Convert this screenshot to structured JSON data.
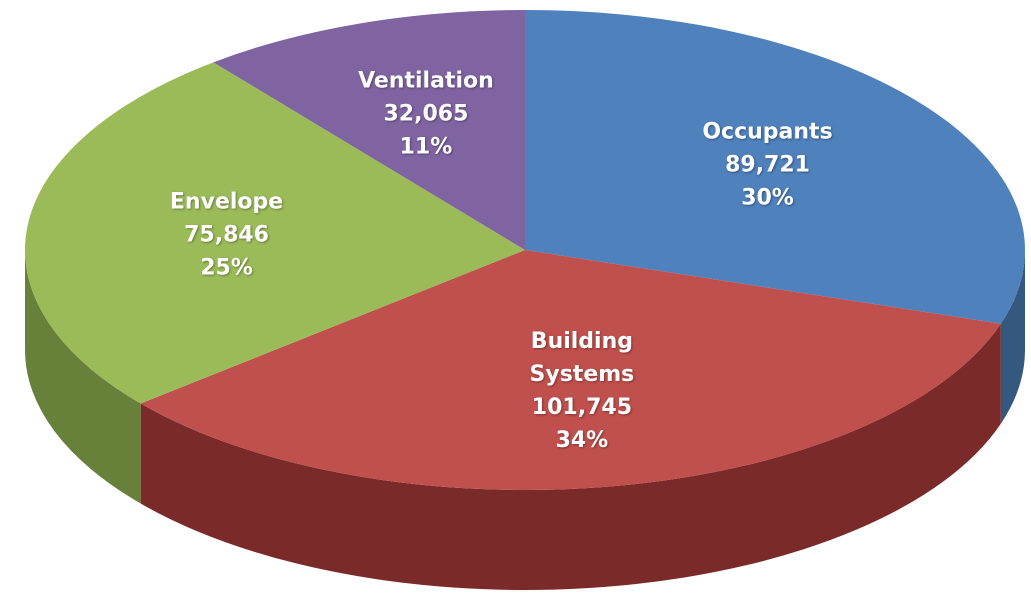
{
  "chart_data": {
    "type": "pie3d",
    "categories": [
      "Occupants",
      "Building Systems",
      "Envelope",
      "Ventilation"
    ],
    "values": [
      89721,
      101745,
      75846,
      32065
    ],
    "value_labels": [
      "89,721",
      "101,745",
      "75,846",
      "32,065"
    ],
    "percents": [
      30,
      34,
      25,
      11
    ],
    "percent_labels": [
      "30%",
      "34%",
      "25%",
      "11%"
    ],
    "colors": [
      "#4f81bd",
      "#c0504d",
      "#9bbb59",
      "#8064a2"
    ],
    "side_colors": [
      "#35587f",
      "#7a2a28",
      "#67803a",
      "#564375"
    ]
  }
}
